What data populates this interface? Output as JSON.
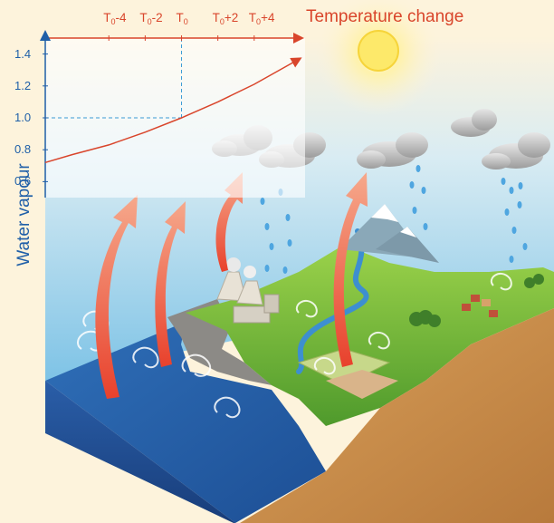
{
  "chart_data": {
    "type": "line",
    "xlabel": "Temperature change",
    "ylabel": "Water vapour",
    "x_ticks": [
      {
        "value": -4,
        "base": "T",
        "sub": "0",
        "suffix": "-4"
      },
      {
        "value": -2,
        "base": "T",
        "sub": "0",
        "suffix": "-2"
      },
      {
        "value": 0,
        "base": "T",
        "sub": "0",
        "suffix": ""
      },
      {
        "value": 2,
        "base": "T",
        "sub": "0",
        "suffix": "+2"
      },
      {
        "value": 4,
        "base": "T",
        "sub": "0",
        "suffix": "+4"
      }
    ],
    "y_ticks": [
      "1.4",
      "1.2",
      "1.0",
      "0.8",
      "0.6"
    ],
    "series": [
      {
        "x": [
          -7.5,
          -6,
          -4,
          -2,
          0,
          2,
          4,
          6.5
        ],
        "y": [
          0.72,
          0.77,
          0.83,
          0.91,
          1.0,
          1.1,
          1.21,
          1.37
        ]
      }
    ],
    "reference": {
      "x": 0,
      "y": 1.0
    },
    "xlim": [
      -7.5,
      6.8
    ],
    "ylim": [
      0.5,
      1.5
    ],
    "colors": {
      "axis": "#d9452b",
      "y_text": "#1f5fa8",
      "curve": "#d9452b",
      "reference": "#3a9bd5"
    }
  },
  "illustration": {
    "icons": [
      "sun-icon",
      "cloud-icon",
      "rain-drop-icon",
      "power-plant-icon",
      "mountain-icon",
      "village-icon",
      "evaporation-swirl-icon",
      "rising-vapour-arrow-icon"
    ]
  }
}
